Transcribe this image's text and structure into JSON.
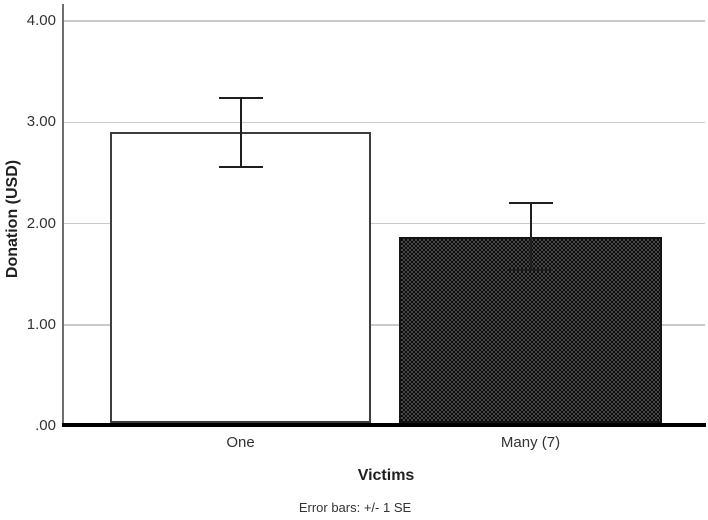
{
  "chart_data": {
    "type": "bar",
    "title": "",
    "categories": [
      "One",
      "Many (7)"
    ],
    "values": [
      2.9,
      1.87
    ],
    "error_upper": [
      3.25,
      2.21
    ],
    "error_lower": [
      2.55,
      1.53
    ],
    "xlabel": "Victims",
    "ylabel": "Donation (USD)",
    "caption": "Error bars: +/- 1 SE",
    "ylim": [
      0,
      4.3
    ],
    "ytick_labels": [
      "4.00",
      "3.00",
      "2.00",
      "1.00",
      ".00"
    ],
    "ytick_values": [
      4,
      3,
      2,
      1,
      0
    ],
    "grid": true,
    "legend_position": "none",
    "bar_styles": [
      "solid-white-outlined",
      "dark-checker-pattern"
    ],
    "colors": {
      "bar_one_fill": "#ffffff",
      "bar_one_outline": "#3d3d3d",
      "bar_many_pattern_dark": "#0d0d0d",
      "bar_many_pattern_light": "#454545",
      "gridline": "#c9c9c9",
      "axis_line": "#6e6e6e",
      "baseline": "#000000",
      "error_bar": "#1f1f1f",
      "text": "#333333"
    }
  }
}
